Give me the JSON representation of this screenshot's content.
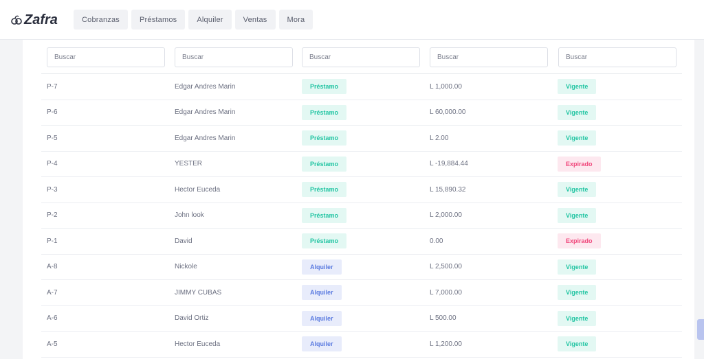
{
  "app": {
    "logo_text": "Zafra"
  },
  "nav": {
    "items": [
      {
        "label": "Cobranzas"
      },
      {
        "label": "Préstamos"
      },
      {
        "label": "Alquiler"
      },
      {
        "label": "Ventas"
      },
      {
        "label": "Mora"
      }
    ]
  },
  "filters": [
    {
      "placeholder": "Buscar"
    },
    {
      "placeholder": "Buscar"
    },
    {
      "placeholder": "Buscar"
    },
    {
      "placeholder": "Buscar"
    },
    {
      "placeholder": "Buscar"
    }
  ],
  "colors": {
    "prestamo_badge": "#23c5a3",
    "alquiler_badge": "#5b7be0",
    "vigente_badge": "#23c5a3",
    "expirado_badge": "#f0457a"
  },
  "rows": [
    {
      "id": "P-7",
      "name": "Edgar Andres Marin",
      "type": "Préstamo",
      "type_kind": "prestamo",
      "amount": "L 1,000.00",
      "status": "Vigente",
      "status_kind": "vigente"
    },
    {
      "id": "P-6",
      "name": "Edgar Andres Marin",
      "type": "Préstamo",
      "type_kind": "prestamo",
      "amount": "L 60,000.00",
      "status": "Vigente",
      "status_kind": "vigente"
    },
    {
      "id": "P-5",
      "name": "Edgar Andres Marin",
      "type": "Préstamo",
      "type_kind": "prestamo",
      "amount": "L 2.00",
      "status": "Vigente",
      "status_kind": "vigente"
    },
    {
      "id": "P-4",
      "name": "YESTER",
      "type": "Préstamo",
      "type_kind": "prestamo",
      "amount": "L -19,884.44",
      "status": "Expirado",
      "status_kind": "expirado"
    },
    {
      "id": "P-3",
      "name": "Hector Euceda",
      "type": "Préstamo",
      "type_kind": "prestamo",
      "amount": "L 15,890.32",
      "status": "Vigente",
      "status_kind": "vigente"
    },
    {
      "id": "P-2",
      "name": "John look",
      "type": "Préstamo",
      "type_kind": "prestamo",
      "amount": "L 2,000.00",
      "status": "Vigente",
      "status_kind": "vigente"
    },
    {
      "id": "P-1",
      "name": "David",
      "type": "Préstamo",
      "type_kind": "prestamo",
      "amount": "0.00",
      "status": "Expirado",
      "status_kind": "expirado"
    },
    {
      "id": "A-8",
      "name": "Nickole",
      "type": "Alquiler",
      "type_kind": "alquiler",
      "amount": "L 2,500.00",
      "status": "Vigente",
      "status_kind": "vigente"
    },
    {
      "id": "A-7",
      "name": "JIMMY CUBAS",
      "type": "Alquiler",
      "type_kind": "alquiler",
      "amount": "L 7,000.00",
      "status": "Vigente",
      "status_kind": "vigente"
    },
    {
      "id": "A-6",
      "name": "David Ortiz",
      "type": "Alquiler",
      "type_kind": "alquiler",
      "amount": "L 500.00",
      "status": "Vigente",
      "status_kind": "vigente"
    },
    {
      "id": "A-5",
      "name": "Hector Euceda",
      "type": "Alquiler",
      "type_kind": "alquiler",
      "amount": "L 1,200.00",
      "status": "Vigente",
      "status_kind": "vigente"
    }
  ]
}
